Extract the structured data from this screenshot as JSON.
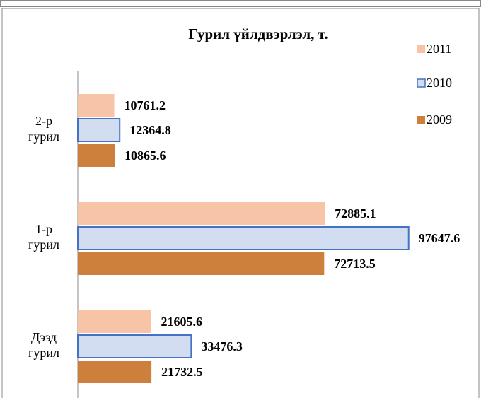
{
  "chart_data": {
    "type": "bar",
    "orientation": "horizontal",
    "title": "Гурил үйлдвэрлэл,  т.",
    "categories": [
      "2-р гурил",
      "1-р гурил",
      "Дээд гурил"
    ],
    "series": [
      {
        "name": "2011",
        "color": "#f8c4a8",
        "values": [
          10761.2,
          72885.1,
          21605.6
        ]
      },
      {
        "name": "2010",
        "color": "#d3ddf2",
        "values": [
          12364.8,
          97647.6,
          33476.3
        ]
      },
      {
        "name": "2009",
        "color": "#cd7f3c",
        "values": [
          10865.6,
          72713.5,
          21732.5
        ]
      }
    ],
    "xlim": [
      0,
      100000
    ]
  }
}
